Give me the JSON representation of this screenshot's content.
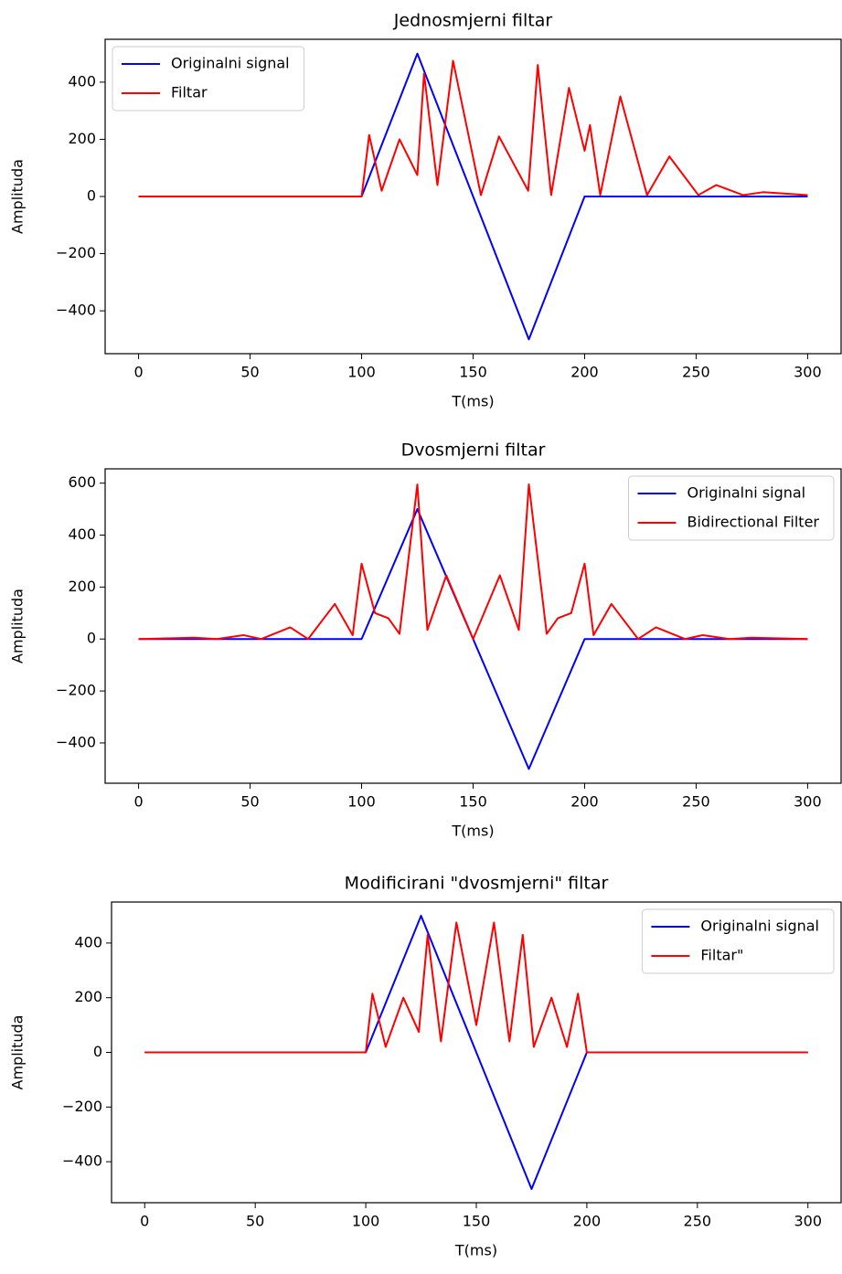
{
  "chart_data": [
    {
      "type": "line",
      "title": "Jednosmjerni filtar",
      "xlabel": "T(ms)",
      "ylabel": "Amplituda",
      "xlim": [
        -15,
        315
      ],
      "ylim": [
        -550,
        550
      ],
      "xticks": [
        0,
        50,
        100,
        150,
        200,
        250,
        300
      ],
      "yticks": [
        {
          "value": -400,
          "label": "−400"
        },
        {
          "value": -200,
          "label": "−200"
        },
        0,
        200,
        400
      ],
      "legend": "upper left",
      "series": [
        {
          "name": "Originalni signal",
          "color": "#0000ff",
          "x": [
            0,
            100,
            125,
            175,
            200,
            300
          ],
          "values": [
            0,
            0,
            500,
            -500,
            0,
            0
          ]
        },
        {
          "name": "Filtar",
          "color": "#ff0000",
          "x": [
            0,
            100,
            103.4,
            109,
            117,
            125,
            128,
            134,
            141,
            153.5,
            161.6,
            174.7,
            179,
            185,
            193,
            200,
            202.4,
            207,
            216,
            228,
            238,
            251,
            259,
            271,
            280,
            300
          ],
          "values": [
            0,
            0,
            215,
            20,
            200,
            75,
            430,
            40,
            475,
            5,
            210,
            20,
            460,
            5,
            380,
            160,
            250,
            5,
            350,
            5,
            140,
            5,
            40,
            5,
            15,
            5
          ]
        }
      ]
    },
    {
      "type": "line",
      "title": "Dvosmjerni filtar",
      "xlabel": "T(ms)",
      "ylabel": "Amplituda",
      "xlim": [
        -15,
        315
      ],
      "ylim": [
        -555,
        655
      ],
      "xticks": [
        0,
        50,
        100,
        150,
        200,
        250,
        300
      ],
      "yticks": [
        {
          "value": -400,
          "label": "−400"
        },
        {
          "value": -200,
          "label": "−200"
        },
        0,
        200,
        400,
        600
      ],
      "legend": "upper right",
      "series": [
        {
          "name": "Originalni signal",
          "color": "#0000ff",
          "x": [
            0,
            100,
            125,
            175,
            200,
            300
          ],
          "values": [
            0,
            0,
            500,
            -500,
            0,
            0
          ]
        },
        {
          "name": "Bidirectional Filter",
          "color": "#ff0000",
          "x": [
            0,
            25,
            35,
            47,
            55,
            68,
            76,
            88,
            96,
            100,
            106,
            112,
            117,
            125,
            129.5,
            138,
            150,
            162,
            170.5,
            175,
            183,
            188,
            194,
            200,
            204,
            212,
            224,
            232,
            245,
            253,
            265,
            275,
            300
          ],
          "values": [
            0,
            5,
            0,
            15,
            0,
            45,
            0,
            135,
            15,
            290,
            100,
            80,
            20,
            595,
            35,
            245,
            0,
            245,
            35,
            595,
            20,
            80,
            100,
            290,
            15,
            135,
            0,
            45,
            0,
            15,
            0,
            5,
            0
          ]
        }
      ]
    },
    {
      "type": "line",
      "title": "Modificirani \"dvosmjerni\" filtar",
      "xlabel": "T(ms)",
      "ylabel": "Amplituda",
      "xlim": [
        -15,
        315
      ],
      "ylim": [
        -550,
        550
      ],
      "xticks": [
        0,
        50,
        100,
        150,
        200,
        250,
        300
      ],
      "yticks": [
        {
          "value": -400,
          "label": "−400"
        },
        {
          "value": -200,
          "label": "−200"
        },
        0,
        200,
        400
      ],
      "legend": "upper right",
      "series": [
        {
          "name": "Originalni signal",
          "color": "#0000ff",
          "x": [
            0,
            100,
            125,
            175,
            200,
            300
          ],
          "values": [
            0,
            0,
            500,
            -500,
            0,
            0
          ]
        },
        {
          "name": "Filtar\"",
          "color": "#ff0000",
          "x": [
            0,
            100,
            103,
            109,
            117,
            124,
            128,
            134,
            141,
            150,
            158,
            165,
            171,
            176,
            184,
            191,
            196,
            200,
            300
          ],
          "values": [
            0,
            0,
            215,
            20,
            200,
            75,
            430,
            40,
            475,
            100,
            475,
            40,
            430,
            20,
            200,
            20,
            215,
            0,
            0
          ]
        }
      ]
    }
  ]
}
